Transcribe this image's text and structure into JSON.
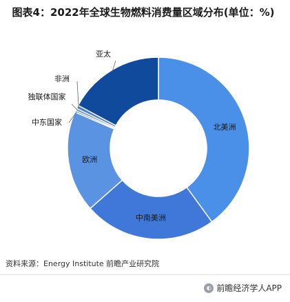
{
  "title": "图表4：2022年全球生物燃料消费量区域分布(单位：%)",
  "source": "资料来源：Energy Institute 前瞻产业研究院",
  "brand": "前瞻经济学人APP",
  "colors": {
    "north_america": "#4a8fe8",
    "south_central_america": "#3f78d8",
    "europe": "#5a93e2",
    "cis": "#4f86d9",
    "africa": "#4a7fd0",
    "asia_pacific": "#0f4a9c"
  },
  "chart_data": {
    "type": "pie",
    "donut": true,
    "title": "图表4：2022年全球生物燃料消费量区域分布(单位：%)",
    "series": [
      {
        "name": "北美洲",
        "value": 40.0
      },
      {
        "name": "中南美洲",
        "value": 23.5
      },
      {
        "name": "欧洲",
        "value": 18.0
      },
      {
        "name": "中东国家",
        "value": 0.3
      },
      {
        "name": "独联体国家",
        "value": 0.4
      },
      {
        "name": "非洲",
        "value": 0.6
      },
      {
        "name": "亚太",
        "value": 17.2
      }
    ]
  }
}
